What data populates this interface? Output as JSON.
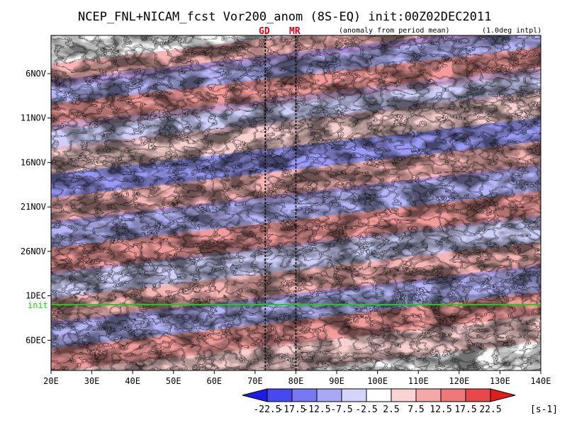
{
  "header": {
    "title": "NCEP_FNL+NICAM_fcst Vor200_anom (8S-EQ) init:00Z02DEC2011",
    "subtitle_left": "(anomaly from period mean)",
    "subtitle_right": "(1.0deg intpl)"
  },
  "markers": [
    {
      "label": "GD",
      "lon": 72.5
    },
    {
      "label": "MR",
      "lon": 80
    }
  ],
  "colors": {
    "init_line": "#18d018",
    "marker_text": "#d0001a",
    "bins": [
      "#1c1ce6",
      "#4848f0",
      "#7878f2",
      "#a8a8f6",
      "#d4d4fa",
      "#ffffff",
      "#fad4d4",
      "#f4a8a8",
      "#f07878",
      "#e84848",
      "#e01c1c"
    ]
  },
  "chart_data": {
    "type": "heatmap",
    "title": "NCEP_FNL+NICAM_fcst Vor200_anom (8S-EQ) init:00Z02DEC2011",
    "x_axis": {
      "range": [
        20,
        140
      ],
      "ticks": [
        20,
        30,
        40,
        50,
        60,
        70,
        80,
        90,
        100,
        110,
        120,
        130,
        140
      ],
      "tick_labels": [
        "20E",
        "30E",
        "40E",
        "50E",
        "60E",
        "70E",
        "80E",
        "90E",
        "100E",
        "110E",
        "120E",
        "130E",
        "140E"
      ]
    },
    "y_axis": {
      "direction": "time increasing downward",
      "ticks": [
        "6NOV",
        "11NOV",
        "16NOV",
        "21NOV",
        "26NOV",
        "1DEC",
        "6DEC"
      ],
      "tick_day_index": [
        5,
        10,
        15,
        20,
        25,
        30,
        35
      ],
      "range_days": [
        0.7,
        38.4
      ],
      "init_label": "init",
      "init_day_index": 31
    },
    "colorbar": {
      "levels": [
        "-22.5",
        "-17.5",
        "-12.5",
        "-7.5",
        "-2.5",
        "2.5",
        "7.5",
        "12.5",
        "17.5",
        "22.5"
      ],
      "unit": "[s-1]"
    },
    "grid": false
  }
}
